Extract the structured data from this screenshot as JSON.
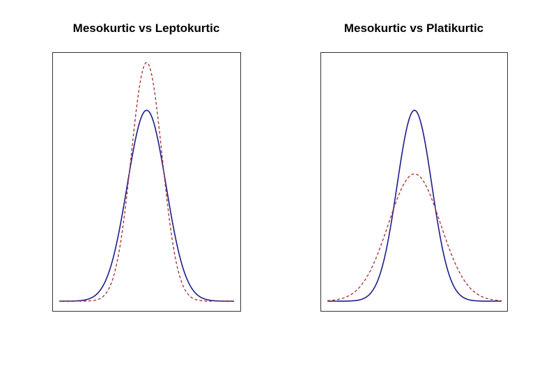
{
  "chart_data": [
    {
      "type": "line",
      "title": "Mesokurtic vs Leptokurtic",
      "xlabel": "",
      "ylabel": "",
      "xlim": [
        -4.5,
        4.5
      ],
      "ylim": [
        0,
        0.5
      ],
      "axes_shown": false,
      "grid": false,
      "series": [
        {
          "distribution": "normal",
          "mean": 0,
          "sd": 1,
          "color": "#1c1c8a",
          "style": "solid",
          "peak_value": 0.399
        },
        {
          "distribution": "normal",
          "mean": 0,
          "sd": 0.8,
          "color": "#a83a3a",
          "style": "dashed",
          "peak_value": 0.499
        }
      ]
    },
    {
      "type": "line",
      "title": "Mesokurtic vs Platikurtic",
      "xlabel": "",
      "ylabel": "",
      "xlim": [
        -5,
        5
      ],
      "ylim": [
        0,
        0.5
      ],
      "axes_shown": false,
      "grid": false,
      "series": [
        {
          "distribution": "normal",
          "mean": 0,
          "sd": 1,
          "color": "#1c1c8a",
          "style": "solid",
          "peak_value": 0.399
        },
        {
          "distribution": "normal",
          "mean": 0,
          "sd": 1.5,
          "color": "#a83a3a",
          "style": "dashed",
          "peak_value": 0.266
        }
      ]
    }
  ]
}
